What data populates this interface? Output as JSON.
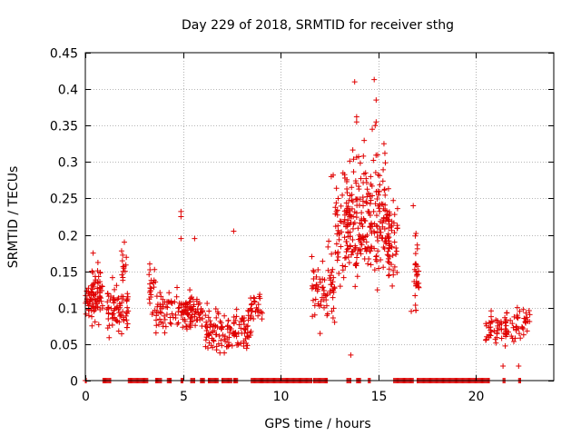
{
  "chart_data": {
    "type": "scatter",
    "title": "Day 229 of 2018, SRMTID for receiver sthg",
    "xlabel": "GPS time / hours",
    "ylabel": "SRMTID / TECUs",
    "xlim": [
      0,
      24
    ],
    "ylim": [
      0,
      0.45
    ],
    "x_ticks": [
      0,
      5,
      10,
      15,
      20
    ],
    "x_tick_labels": [
      "0",
      "5",
      "10",
      "15",
      "20"
    ],
    "y_ticks": [
      0,
      0.05,
      0.1,
      0.15,
      0.2,
      0.25,
      0.3,
      0.35,
      0.4,
      0.45
    ],
    "y_tick_labels": [
      "0",
      "0.05",
      "0.1",
      "0.15",
      "0.2",
      "0.25",
      "0.3",
      "0.35",
      "0.4",
      "0.45"
    ],
    "grid": true,
    "marker": "+",
    "series_color": "#e00000",
    "clusters": [
      {
        "x_range": [
          0.0,
          0.9
        ],
        "y_center": 0.11,
        "y_spread": 0.025,
        "count": 70
      },
      {
        "x_range": [
          0.3,
          0.8
        ],
        "y_center": 0.14,
        "y_spread": 0.025,
        "count": 18
      },
      {
        "x_range": [
          1.1,
          2.2
        ],
        "y_center": 0.1,
        "y_spread": 0.035,
        "count": 75
      },
      {
        "x_range": [
          1.8,
          2.2
        ],
        "y_center": 0.16,
        "y_spread": 0.02,
        "count": 12
      },
      {
        "x_range": [
          3.2,
          3.6
        ],
        "y_center": 0.12,
        "y_spread": 0.025,
        "count": 22
      },
      {
        "x_range": [
          3.6,
          5.5
        ],
        "y_center": 0.095,
        "y_spread": 0.025,
        "count": 90
      },
      {
        "x_range": [
          5.0,
          6.1
        ],
        "y_center": 0.095,
        "y_spread": 0.02,
        "count": 45
      },
      {
        "x_range": [
          6.1,
          8.5
        ],
        "y_center": 0.07,
        "y_spread": 0.025,
        "count": 130
      },
      {
        "x_range": [
          8.3,
          9.1
        ],
        "y_center": 0.1,
        "y_spread": 0.02,
        "count": 30
      },
      {
        "x_range": [
          11.6,
          12.8
        ],
        "y_center": 0.13,
        "y_spread": 0.05,
        "count": 70
      },
      {
        "x_range": [
          12.8,
          15.6
        ],
        "y_center": 0.2,
        "y_spread": 0.06,
        "count": 240
      },
      {
        "x_range": [
          13.4,
          15.4
        ],
        "y_center": 0.27,
        "y_spread": 0.05,
        "count": 60
      },
      {
        "x_range": [
          15.5,
          16.0
        ],
        "y_center": 0.19,
        "y_spread": 0.05,
        "count": 40
      },
      {
        "x_range": [
          16.8,
          17.1
        ],
        "y_center": 0.15,
        "y_spread": 0.05,
        "count": 28
      },
      {
        "x_range": [
          20.5,
          21.6
        ],
        "y_center": 0.07,
        "y_spread": 0.02,
        "count": 45
      },
      {
        "x_range": [
          21.5,
          22.8
        ],
        "y_center": 0.075,
        "y_spread": 0.025,
        "count": 50
      }
    ],
    "outlier_points": [
      [
        13.8,
        0.41
      ],
      [
        14.8,
        0.413
      ],
      [
        14.9,
        0.385
      ],
      [
        14.85,
        0.35
      ],
      [
        13.9,
        0.362
      ],
      [
        13.9,
        0.355
      ],
      [
        14.7,
        0.345
      ],
      [
        14.9,
        0.355
      ],
      [
        4.9,
        0.232
      ],
      [
        4.9,
        0.225
      ],
      [
        5.6,
        0.195
      ],
      [
        7.6,
        0.205
      ],
      [
        4.9,
        0.195
      ],
      [
        13.6,
        0.035
      ],
      [
        21.4,
        0.02
      ],
      [
        22.2,
        0.02
      ],
      [
        16.7,
        0.095
      ],
      [
        12.6,
        0.28
      ],
      [
        12.7,
        0.282
      ],
      [
        16.8,
        0.24
      ],
      [
        2.0,
        0.19
      ],
      [
        0.4,
        0.175
      ],
      [
        3.3,
        0.16
      ],
      [
        13.2,
        0.285
      ],
      [
        15.3,
        0.325
      ]
    ],
    "zero_segments": [
      [
        0.0,
        0.05
      ],
      [
        0.9,
        1.3
      ],
      [
        2.2,
        3.2
      ],
      [
        3.6,
        3.9
      ],
      [
        4.2,
        4.4
      ],
      [
        4.9,
        5.0
      ],
      [
        5.4,
        5.6
      ],
      [
        5.9,
        6.1
      ],
      [
        6.3,
        6.8
      ],
      [
        7.0,
        7.5
      ],
      [
        7.6,
        7.8
      ],
      [
        8.5,
        9.1
      ],
      [
        9.0,
        11.6
      ],
      [
        11.7,
        12.4
      ],
      [
        13.4,
        13.6
      ],
      [
        13.9,
        14.1
      ],
      [
        14.5,
        14.6
      ],
      [
        15.8,
        16.8
      ],
      [
        17.0,
        20.7
      ],
      [
        21.4,
        21.5
      ],
      [
        22.2,
        22.3
      ]
    ]
  }
}
